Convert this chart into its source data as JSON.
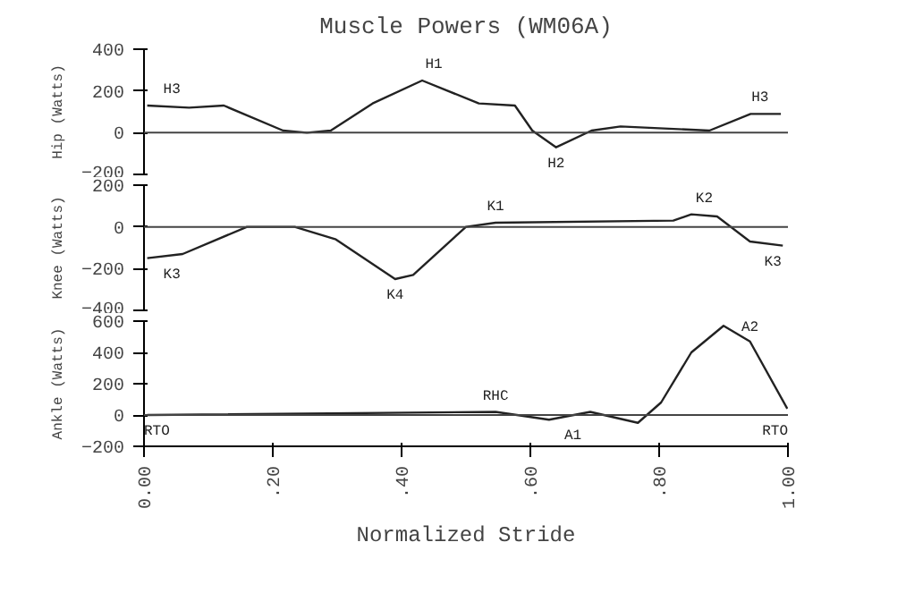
{
  "chart_data": [
    {
      "type": "line",
      "title": "Muscle Powers (WM06A)",
      "ylabel": "Hip (Watts)",
      "xlim": [
        0,
        1
      ],
      "ylim": [
        -200,
        400
      ],
      "yticks": [
        400,
        200,
        0,
        -200
      ],
      "tick_labels": "y",
      "grid": false,
      "series": [
        {
          "color": "#222222",
          "x": [
            0.005,
            0.07,
            0.124,
            0.216,
            0.253,
            0.29,
            0.355,
            0.432,
            0.52,
            0.576,
            0.603,
            0.64,
            0.695,
            0.74,
            0.878,
            0.942,
            0.989
          ],
          "values": [
            130,
            120,
            130,
            10,
            0,
            10,
            140,
            250,
            140,
            130,
            10,
            -70,
            10,
            30,
            10,
            90,
            90
          ]
        }
      ],
      "ref_lines": [
        {
          "axis": "y",
          "value": 0
        }
      ],
      "annotations": [
        {
          "text": "H3",
          "x": 0.03,
          "y": 130
        },
        {
          "text": "H1",
          "x": 0.45,
          "y": 250
        },
        {
          "text": "H2",
          "x": 0.64,
          "y": -70
        },
        {
          "text": "H3",
          "x": 0.97,
          "y": 90
        }
      ]
    },
    {
      "type": "line",
      "ylabel": "Knee (Watts)",
      "xlim": [
        0,
        1
      ],
      "ylim": [
        -400,
        200
      ],
      "yticks": [
        200,
        0,
        -200,
        -400
      ],
      "tick_labels": "y",
      "grid": false,
      "series": [
        {
          "color": "#222222",
          "x": [
            0.005,
            0.06,
            0.16,
            0.234,
            0.298,
            0.39,
            0.418,
            0.5,
            0.546,
            0.822,
            0.85,
            0.89,
            0.941,
            0.992
          ],
          "values": [
            -150,
            -130,
            0,
            0,
            -60,
            -250,
            -230,
            0,
            20,
            30,
            60,
            50,
            -70,
            -90
          ]
        }
      ],
      "ref_lines": [
        {
          "axis": "y",
          "value": 0
        }
      ],
      "annotations": [
        {
          "text": "K3",
          "x": 0.03,
          "y": -150
        },
        {
          "text": "K4",
          "x": 0.39,
          "y": -250
        },
        {
          "text": "K1",
          "x": 0.546,
          "y": 20
        },
        {
          "text": "K2",
          "x": 0.87,
          "y": 60
        },
        {
          "text": "K3",
          "x": 0.99,
          "y": -90
        }
      ]
    },
    {
      "type": "line",
      "ylabel": "Ankle (Watts)",
      "xlabel": "Normalized Stride",
      "xlim": [
        0,
        1
      ],
      "xticks": [
        {
          "value": 0,
          "label": "0.00"
        },
        {
          "value": 0.2,
          "label": ".20"
        },
        {
          "value": 0.4,
          "label": ".40"
        },
        {
          "value": 0.6,
          "label": ".60"
        },
        {
          "value": 0.8,
          "label": ".80"
        },
        {
          "value": 1,
          "label": "1.00"
        }
      ],
      "ylim": [
        -200,
        600
      ],
      "yticks": [
        600,
        400,
        200,
        0,
        -200
      ],
      "grid": false,
      "series": [
        {
          "color": "#222222",
          "x": [
            0.005,
            0.546,
            0.629,
            0.693,
            0.767,
            0.803,
            0.85,
            0.9,
            0.941,
            0.999
          ],
          "values": [
            0,
            20,
            -30,
            20,
            -50,
            80,
            400,
            570,
            470,
            40
          ]
        }
      ],
      "ref_lines": [
        {
          "axis": "y",
          "value": 0
        }
      ],
      "annotations": [
        {
          "text": "RTO",
          "x": 0.0,
          "y": 0
        },
        {
          "text": "RHC",
          "x": 0.546,
          "y": 20
        },
        {
          "text": "A1",
          "x": 0.666,
          "y": -30
        },
        {
          "text": "A2",
          "x": 0.9,
          "y": 570
        },
        {
          "text": "RTO",
          "x": 1.0,
          "y": 0
        }
      ]
    }
  ]
}
